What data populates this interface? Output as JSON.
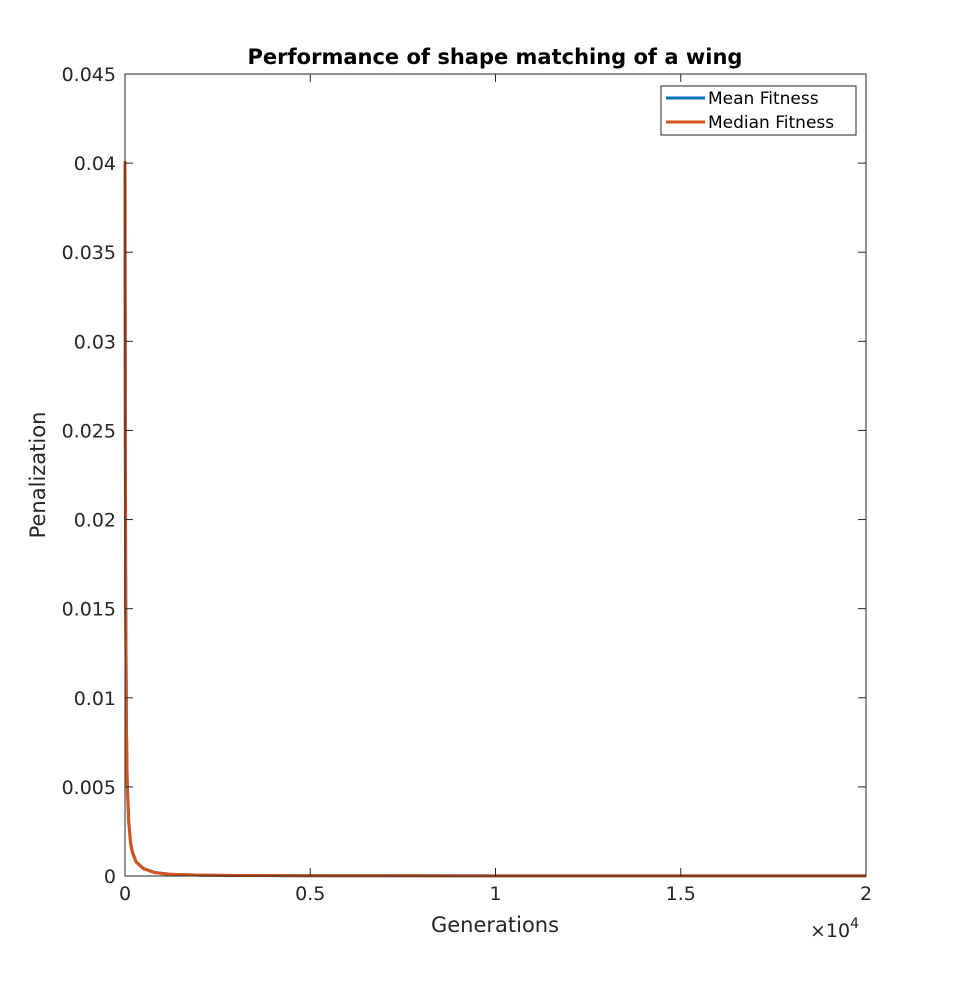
{
  "chart_data": {
    "type": "line",
    "title": "Performance of shape matching of a wing",
    "xlabel": "Generations",
    "ylabel": "Penalization",
    "xlim": [
      0,
      20000
    ],
    "ylim": [
      0,
      0.045
    ],
    "x_exponent_label": {
      "base": "×10",
      "exp": "4"
    },
    "xticks": [
      0,
      5000,
      10000,
      15000,
      20000
    ],
    "xtick_labels": [
      "0",
      "0.5",
      "1",
      "1.5",
      "2"
    ],
    "yticks": [
      0,
      0.005,
      0.01,
      0.015,
      0.02,
      0.025,
      0.03,
      0.035,
      0.04,
      0.045
    ],
    "ytick_labels": [
      "0",
      "0.005",
      "0.01",
      "0.015",
      "0.02",
      "0.025",
      "0.03",
      "0.035",
      "0.04",
      "0.045"
    ],
    "legend_position": "top-right",
    "series": [
      {
        "name": "Mean Fitness",
        "color": "#0072BD",
        "x": [
          0,
          10,
          20,
          40,
          60,
          100,
          150,
          200,
          300,
          500,
          800,
          1200,
          2000,
          3000,
          5000,
          10000,
          15000,
          20000
        ],
        "y": [
          0.0401,
          0.024,
          0.0155,
          0.0082,
          0.0053,
          0.0031,
          0.0019,
          0.00135,
          0.0008,
          0.00042,
          0.0002,
          0.0001,
          5e-05,
          3e-05,
          1.5e-05,
          8e-06,
          5e-06,
          4e-06
        ]
      },
      {
        "name": "Median Fitness",
        "color": "#D95319",
        "x": [
          0,
          10,
          20,
          40,
          60,
          100,
          150,
          200,
          300,
          500,
          800,
          1200,
          2000,
          3000,
          5000,
          10000,
          15000,
          20000
        ],
        "y": [
          0.0401,
          0.0235,
          0.015,
          0.008,
          0.0051,
          0.003,
          0.0018,
          0.0013,
          0.00078,
          0.0004,
          0.00019,
          0.0001,
          5e-05,
          3e-05,
          1.5e-05,
          8e-06,
          5e-06,
          4e-06
        ]
      }
    ]
  }
}
